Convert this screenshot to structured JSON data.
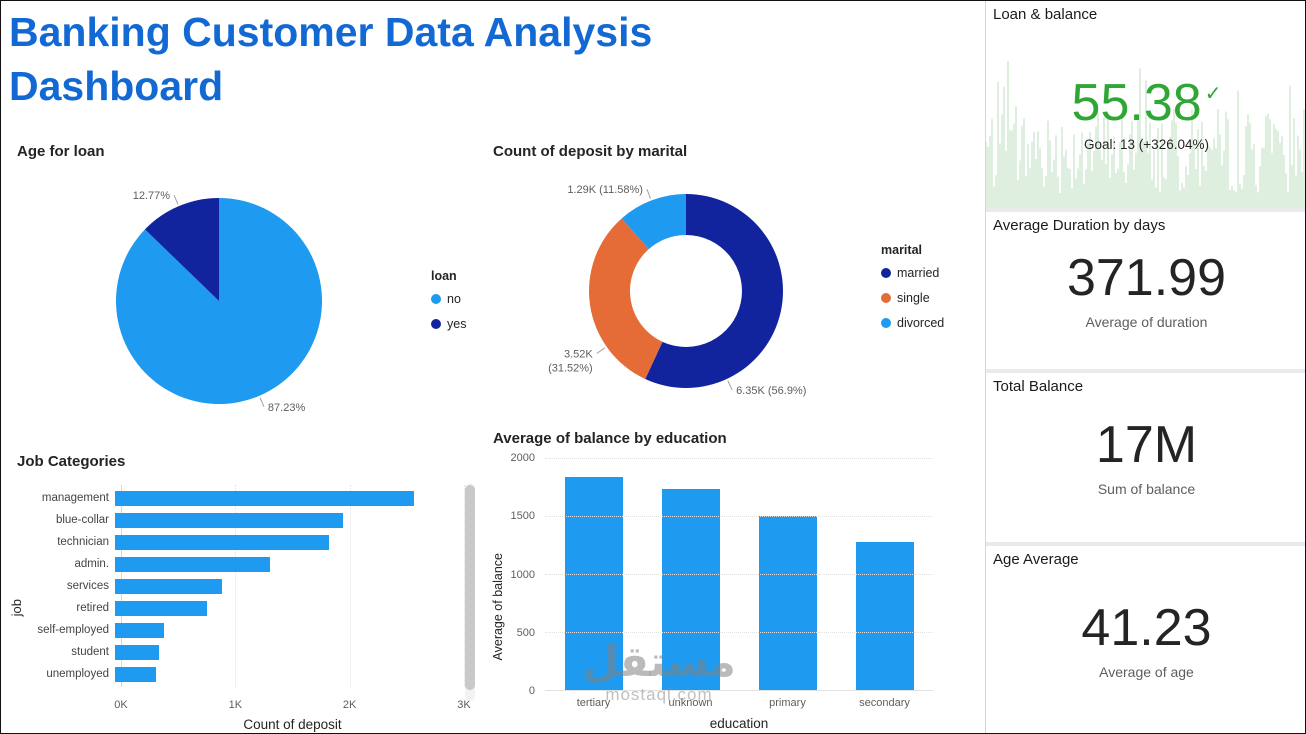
{
  "page": {
    "title": "Banking Customer Data Analysis Dashboard"
  },
  "colors": {
    "primary_blue": "#1E9BF0",
    "dark_blue": "#12239E",
    "orange": "#E66C37",
    "title_blue": "#1269D3",
    "kpi_green": "#2FA636"
  },
  "chart_data": [
    {
      "id": "age_for_loan",
      "type": "pie",
      "title": "Age for loan",
      "legend_title": "loan",
      "legend_position": "right",
      "slices": [
        {
          "label": "no",
          "value": 87.23,
          "display": "87.23%",
          "color": "#1E9BF0"
        },
        {
          "label": "yes",
          "value": 12.77,
          "display": "12.77%",
          "color": "#12239E"
        }
      ]
    },
    {
      "id": "deposit_by_marital",
      "type": "donut",
      "title": "Count of deposit by marital",
      "legend_title": "marital",
      "legend_position": "right",
      "slices": [
        {
          "label": "married",
          "value": 6350,
          "display": "6.35K (56.9%)",
          "color": "#12239E"
        },
        {
          "label": "single",
          "value": 3520,
          "display": "3.52K",
          "display2": "(31.52%)",
          "color": "#E66C37"
        },
        {
          "label": "divorced",
          "value": 1290,
          "display": "1.29K (11.58%)",
          "color": "#1E9BF0"
        }
      ]
    },
    {
      "id": "job_categories",
      "type": "bar",
      "orientation": "horizontal",
      "title": "Job Categories",
      "xlabel": "Count of deposit",
      "ylabel": "job",
      "categories": [
        "management",
        "blue-collar",
        "technician",
        "admin.",
        "services",
        "retired",
        "self-employed",
        "student",
        "unemployed"
      ],
      "values": [
        2570,
        1960,
        1840,
        1330,
        920,
        790,
        420,
        380,
        350
      ],
      "xticks": [
        "0K",
        "1K",
        "2K",
        "3K"
      ],
      "xlim": [
        0,
        3000
      ],
      "grid": true,
      "has_scrollbar": true
    },
    {
      "id": "balance_by_education",
      "type": "bar",
      "orientation": "vertical",
      "title": "Average of balance by education",
      "xlabel": "education",
      "ylabel": "Average of balance",
      "categories": [
        "tertiary",
        "unknown",
        "primary",
        "secondary"
      ],
      "values": [
        1840,
        1730,
        1500,
        1280
      ],
      "yticks": [
        0,
        500,
        1000,
        1500,
        2000
      ],
      "ylim": [
        0,
        2000
      ],
      "grid": true
    }
  ],
  "kpis": {
    "loan_balance": {
      "title": "Loan & balance",
      "value": "55.38",
      "check": "✓",
      "goal": "Goal: 13 (+326.04%)"
    },
    "avg_duration": {
      "title": "Average Duration by days",
      "value": "371.99",
      "subtitle": "Average of duration"
    },
    "total_balance": {
      "title": "Total Balance",
      "value": "17M",
      "subtitle": "Sum of balance"
    },
    "age_average": {
      "title": "Age Average",
      "value": "41.23",
      "subtitle": "Average of age"
    }
  },
  "watermark": {
    "arabic": "مستقل",
    "latin": "mostaql.com"
  }
}
